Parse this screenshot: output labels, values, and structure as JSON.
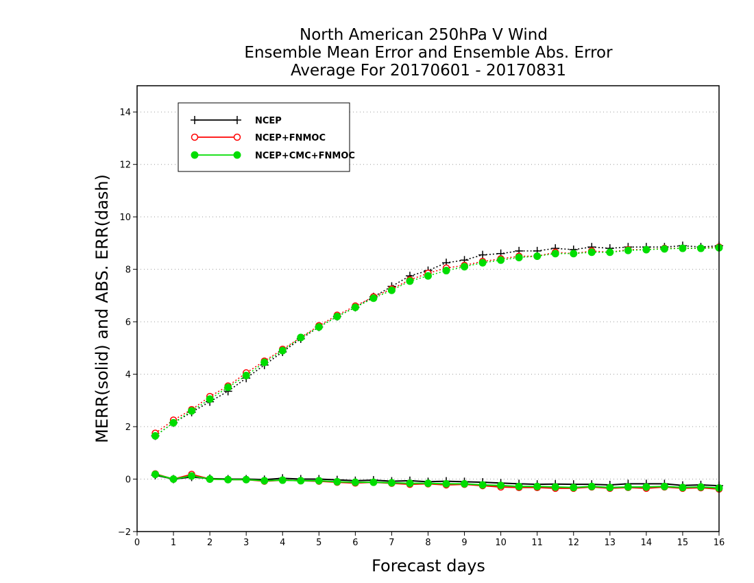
{
  "chart_data": {
    "type": "line",
    "title": [
      "North American 250hPa V Wind",
      "Ensemble Mean Error and Ensemble Abs. Error",
      "Average For 20170601 - 20170831"
    ],
    "xlabel": "Forecast days",
    "ylabel": "MERR(solid) and ABS. ERR(dash)",
    "xlim": [
      0,
      16
    ],
    "ylim": [
      -2,
      15
    ],
    "xticks": [
      0,
      1,
      2,
      3,
      4,
      5,
      6,
      7,
      8,
      9,
      10,
      11,
      12,
      13,
      14,
      15,
      16
    ],
    "yticks": [
      -2,
      0,
      2,
      4,
      6,
      8,
      10,
      12,
      14
    ],
    "grid": "horizontal dotted",
    "legend_position": "top-left",
    "x": [
      0.5,
      1,
      1.5,
      2,
      2.5,
      3,
      3.5,
      4,
      4.5,
      5,
      5.5,
      6,
      6.5,
      7,
      7.5,
      8,
      8.5,
      9,
      9.5,
      10,
      10.5,
      11,
      11.5,
      12,
      12.5,
      13,
      13.5,
      14,
      14.5,
      15,
      15.5,
      16
    ],
    "series": [
      {
        "name": "NCEP",
        "color": "#000000",
        "marker": "plus",
        "merr": [
          0.15,
          0.0,
          0.08,
          0.02,
          0.0,
          0.0,
          -0.02,
          0.03,
          0.0,
          0.0,
          -0.03,
          -0.06,
          -0.04,
          -0.08,
          -0.06,
          -0.1,
          -0.08,
          -0.1,
          -0.12,
          -0.15,
          -0.18,
          -0.2,
          -0.19,
          -0.2,
          -0.2,
          -0.22,
          -0.18,
          -0.18,
          -0.18,
          -0.24,
          -0.22,
          -0.25
        ],
        "abs_err": [
          1.65,
          2.15,
          2.55,
          2.95,
          3.35,
          3.85,
          4.35,
          4.85,
          5.35,
          5.8,
          6.2,
          6.55,
          6.95,
          7.35,
          7.75,
          7.95,
          8.25,
          8.35,
          8.55,
          8.6,
          8.7,
          8.7,
          8.8,
          8.75,
          8.85,
          8.8,
          8.85,
          8.85,
          8.85,
          8.9,
          8.85,
          8.9
        ]
      },
      {
        "name": "NCEP+FNMOC",
        "color": "#ff0000",
        "marker": "open-circle",
        "merr": [
          0.2,
          0.0,
          0.18,
          0.0,
          -0.02,
          -0.02,
          -0.08,
          -0.04,
          -0.06,
          -0.08,
          -0.12,
          -0.15,
          -0.12,
          -0.16,
          -0.2,
          -0.18,
          -0.22,
          -0.2,
          -0.25,
          -0.3,
          -0.32,
          -0.32,
          -0.35,
          -0.35,
          -0.3,
          -0.35,
          -0.32,
          -0.35,
          -0.3,
          -0.35,
          -0.33,
          -0.38
        ],
        "abs_err": [
          1.75,
          2.25,
          2.65,
          3.15,
          3.55,
          4.05,
          4.5,
          4.95,
          5.4,
          5.85,
          6.25,
          6.6,
          6.95,
          7.25,
          7.6,
          7.85,
          8.05,
          8.15,
          8.3,
          8.4,
          8.5,
          8.5,
          8.65,
          8.6,
          8.7,
          8.65,
          8.75,
          8.75,
          8.8,
          8.8,
          8.8,
          8.85
        ]
      },
      {
        "name": "NCEP+CMC+FNMOC",
        "color": "#00dd00",
        "marker": "filled-circle",
        "merr": [
          0.18,
          0.0,
          0.12,
          0.0,
          -0.02,
          -0.02,
          -0.06,
          -0.04,
          -0.06,
          -0.06,
          -0.1,
          -0.12,
          -0.12,
          -0.14,
          -0.16,
          -0.16,
          -0.18,
          -0.18,
          -0.22,
          -0.24,
          -0.28,
          -0.28,
          -0.3,
          -0.32,
          -0.28,
          -0.32,
          -0.3,
          -0.3,
          -0.28,
          -0.32,
          -0.3,
          -0.34
        ],
        "abs_err": [
          1.65,
          2.15,
          2.6,
          3.05,
          3.5,
          3.95,
          4.45,
          4.9,
          5.4,
          5.8,
          6.2,
          6.55,
          6.9,
          7.2,
          7.55,
          7.75,
          7.95,
          8.1,
          8.25,
          8.35,
          8.45,
          8.5,
          8.6,
          8.6,
          8.65,
          8.65,
          8.72,
          8.75,
          8.78,
          8.8,
          8.8,
          8.82
        ]
      }
    ]
  }
}
